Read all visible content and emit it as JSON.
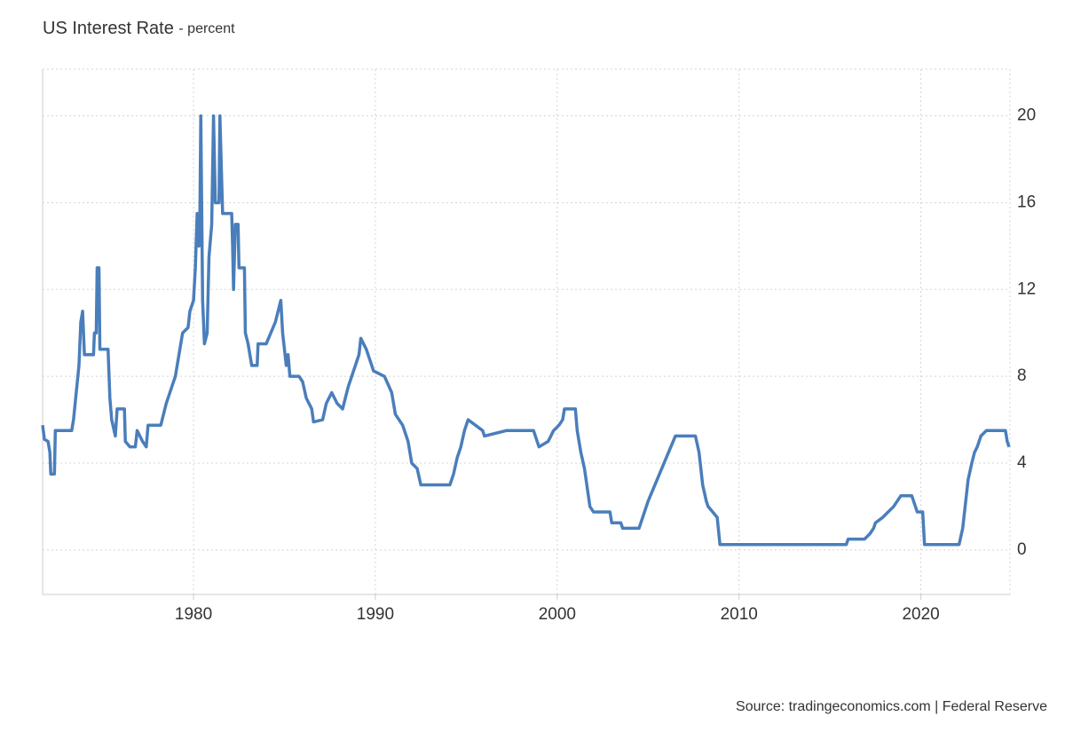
{
  "chart_data": {
    "type": "line",
    "title": "US Interest Rate",
    "subtitle": "- percent",
    "source": "Source: tradingeconomics.com | Federal Reserve",
    "xlim": [
      1971.7,
      2024.9
    ],
    "xticks": [
      1980,
      1990,
      2000,
      2010,
      2020
    ],
    "ylim": [
      -2.05,
      22.15
    ],
    "yticks": [
      0,
      4,
      8,
      12,
      16,
      20
    ],
    "grid": true,
    "y_axis_side": "right",
    "series": [
      {
        "name": "US Interest Rate",
        "color": "#4a7ebb",
        "x": [
          1971.7,
          1971.8,
          1972.0,
          1972.1,
          1972.15,
          1972.35,
          1972.4,
          1973.3,
          1973.4,
          1973.55,
          1973.7,
          1973.8,
          1973.9,
          1974.0,
          1974.5,
          1974.55,
          1974.65,
          1974.7,
          1974.8,
          1974.85,
          1975.3,
          1975.4,
          1975.5,
          1975.7,
          1975.8,
          1976.2,
          1976.25,
          1976.5,
          1976.8,
          1976.9,
          1977.2,
          1977.4,
          1977.5,
          1978.2,
          1978.5,
          1978.8,
          1979.0,
          1979.2,
          1979.4,
          1979.7,
          1979.8,
          1980.0,
          1980.1,
          1980.2,
          1980.3,
          1980.35,
          1980.4,
          1980.5,
          1980.6,
          1980.75,
          1980.85,
          1981.0,
          1981.1,
          1981.2,
          1981.4,
          1981.45,
          1981.6,
          1982.1,
          1982.15,
          1982.2,
          1982.3,
          1982.45,
          1982.5,
          1982.8,
          1982.85,
          1983.0,
          1983.2,
          1983.5,
          1983.55,
          1984.0,
          1984.5,
          1984.8,
          1984.9,
          1985.1,
          1985.2,
          1985.3,
          1985.8,
          1986.0,
          1986.2,
          1986.5,
          1986.6,
          1987.1,
          1987.3,
          1987.6,
          1987.9,
          1988.2,
          1988.5,
          1988.8,
          1989.1,
          1989.2,
          1989.5,
          1989.7,
          1989.9,
          1990.5,
          1990.9,
          1991.1,
          1991.5,
          1991.8,
          1991.9,
          1992.0,
          1992.3,
          1992.5,
          1994.1,
          1994.3,
          1994.5,
          1994.7,
          1994.9,
          1995.1,
          1995.5,
          1995.9,
          1996.0,
          1997.2,
          1998.7,
          1998.9,
          1999.0,
          1999.5,
          1999.8,
          2000.1,
          2000.3,
          2000.4,
          2001.0,
          2001.1,
          2001.3,
          2001.5,
          2001.8,
          2002.0,
          2002.9,
          2003.0,
          2003.5,
          2003.6,
          2004.5,
          2005.0,
          2005.5,
          2006.0,
          2006.5,
          2007.6,
          2007.8,
          2008.0,
          2008.2,
          2008.3,
          2008.8,
          2008.95,
          2015.9,
          2016.0,
          2016.9,
          2017.2,
          2017.4,
          2017.5,
          2017.9,
          2018.2,
          2018.5,
          2018.7,
          2018.9,
          2019.5,
          2019.6,
          2019.8,
          2020.1,
          2020.2,
          2022.1,
          2022.3,
          2022.4,
          2022.6,
          2022.8,
          2022.95,
          2023.1,
          2023.3,
          2023.6,
          2024.65,
          2024.75,
          2024.85
        ],
        "values": [
          5.75,
          5.1,
          5.0,
          4.5,
          3.5,
          3.5,
          5.5,
          5.5,
          6.0,
          7.25,
          8.5,
          10.5,
          11,
          9,
          9,
          10,
          10,
          13,
          13,
          9.25,
          9.25,
          7,
          6,
          5.25,
          6.5,
          6.5,
          5,
          4.75,
          4.75,
          5.5,
          5,
          4.75,
          5.75,
          5.75,
          6.75,
          7.5,
          8,
          9,
          10,
          10.25,
          11,
          11.5,
          13,
          15.5,
          14,
          15.5,
          20,
          11.5,
          9.5,
          10,
          13.5,
          15,
          20,
          16,
          16,
          20,
          15.5,
          15.5,
          14,
          12,
          15,
          15,
          13,
          13,
          10,
          9.5,
          8.5,
          8.5,
          9.5,
          9.5,
          10.5,
          11.5,
          10,
          8.5,
          9,
          8,
          8,
          7.75,
          7,
          6.5,
          5.9,
          6,
          6.75,
          7.25,
          6.75,
          6.5,
          7.5,
          8.25,
          9.0,
          9.75,
          9.25,
          8.75,
          8.25,
          8.0,
          7.25,
          6.25,
          5.75,
          5.0,
          4.5,
          4.0,
          3.75,
          3.0,
          3.0,
          3.5,
          4.25,
          4.75,
          5.5,
          6.0,
          5.75,
          5.5,
          5.25,
          5.5,
          5.5,
          5.0,
          4.75,
          5.0,
          5.5,
          5.75,
          6.0,
          6.5,
          6.5,
          5.5,
          4.5,
          3.75,
          2.0,
          1.75,
          1.75,
          1.25,
          1.25,
          1.0,
          1.0,
          2.25,
          3.25,
          4.25,
          5.25,
          5.25,
          4.5,
          3.0,
          2.25,
          2.0,
          1.5,
          0.25,
          0.25,
          0.5,
          0.5,
          0.75,
          1.0,
          1.25,
          1.5,
          1.75,
          2.0,
          2.25,
          2.5,
          2.5,
          2.25,
          1.75,
          1.75,
          0.25,
          0.25,
          1.0,
          1.75,
          3.25,
          4.0,
          4.5,
          4.75,
          5.25,
          5.5,
          5.5,
          5.0,
          4.75
        ]
      }
    ]
  }
}
